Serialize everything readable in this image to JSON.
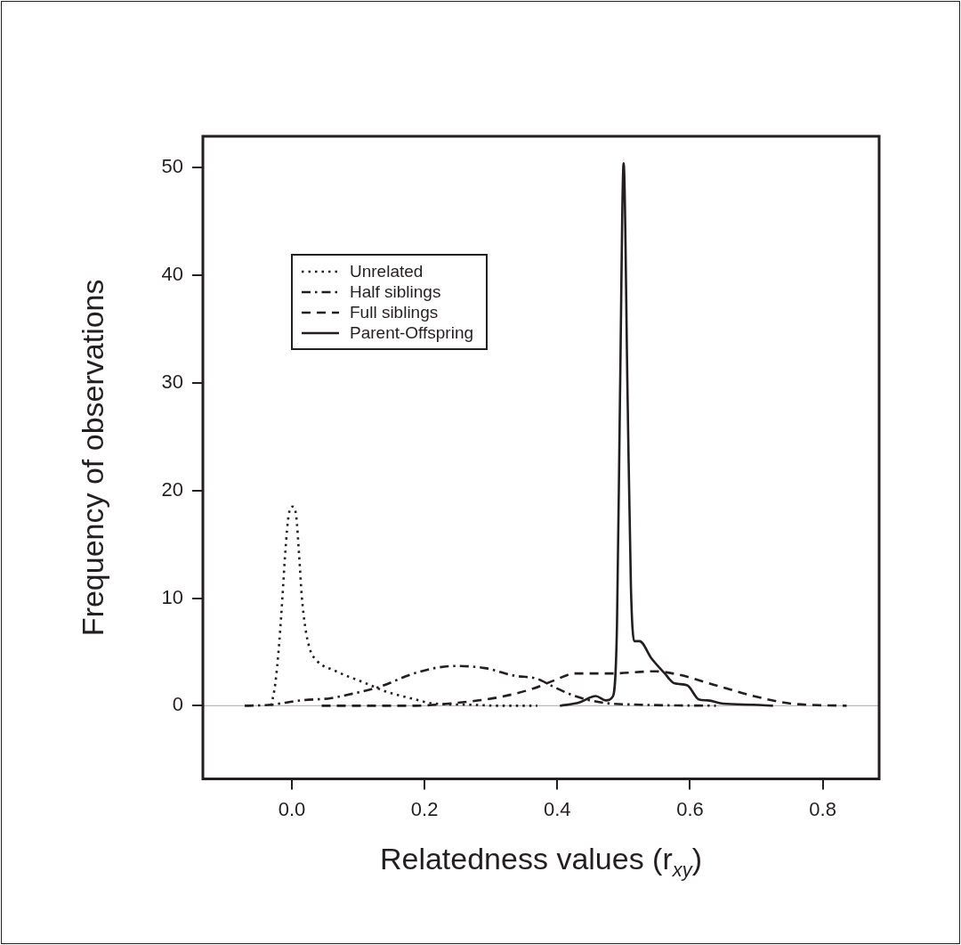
{
  "chart_data": {
    "type": "line",
    "xlabel": "Relatedness values (r$_{xy}$)",
    "ylabel": "Frequency of observations",
    "xlim": [
      -0.134,
      0.885
    ],
    "ylim": [
      -6.8,
      52.9
    ],
    "xticks": [
      {
        "value": 0,
        "label": "0.0"
      },
      0.2,
      0.4,
      0.6,
      0.8
    ],
    "yticks": [
      0,
      10,
      20,
      30,
      40,
      50
    ],
    "grid": false,
    "legend": "top left",
    "marker": "none",
    "ref_lines": [
      {
        "axis": "y",
        "value": 0,
        "label": null,
        "color": "#bbbbbb"
      }
    ],
    "series": [
      {
        "name": "Unrelated",
        "color": "#231f20",
        "line_style": "dotted",
        "x": [
          -0.031,
          -0.025,
          -0.019,
          -0.014,
          -0.0098,
          -0.0045,
          0.0013,
          0.0067,
          0.011,
          0.015,
          0.02,
          0.027,
          0.036,
          0.067,
          0.107,
          0.143,
          0.179,
          0.215,
          0.268,
          0.313,
          0.37
        ],
        "values": [
          0,
          2.0,
          5.8,
          10.2,
          14.3,
          17.8,
          18.5,
          17.6,
          14.0,
          10.2,
          7.4,
          5.3,
          4.3,
          3.2,
          2.2,
          1.3,
          0.7,
          0.2,
          0.1,
          0,
          0
        ]
      },
      {
        "name": "Half siblings",
        "color": "#231f20",
        "line_style": "dashdot",
        "x": [
          -0.071,
          -0.031,
          0.013,
          0.058,
          0.09,
          0.134,
          0.179,
          0.215,
          0.248,
          0.291,
          0.335,
          0.37,
          0.393,
          0.427,
          0.467,
          0.524,
          0.639
        ],
        "values": [
          0,
          0.1,
          0.5,
          0.7,
          1.1,
          1.8,
          2.9,
          3.5,
          3.7,
          3.5,
          2.8,
          2.5,
          1.8,
          0.9,
          0.3,
          0.1,
          0
        ]
      },
      {
        "name": "Full siblings",
        "color": "#231f20",
        "line_style": "dashed",
        "x": [
          0.045,
          0.179,
          0.268,
          0.313,
          0.364,
          0.393,
          0.427,
          0.479,
          0.547,
          0.582,
          0.639,
          0.696,
          0.753,
          0.836
        ],
        "values": [
          0,
          0,
          0.4,
          0.8,
          1.6,
          2.3,
          3.0,
          3.0,
          3.2,
          2.9,
          1.9,
          0.9,
          0.2,
          0
        ]
      },
      {
        "name": "Parent-Offspring",
        "color": "#231f20",
        "line_style": "solid",
        "x": [
          0.404,
          0.433,
          0.458,
          0.473,
          0.484,
          0.49,
          0.4945,
          0.5,
          0.506,
          0.511,
          0.516,
          0.524,
          0.542,
          0.562,
          0.576,
          0.596,
          0.613,
          0.627,
          0.65,
          0.696,
          0.725
        ],
        "values": [
          0,
          0.3,
          0.9,
          0.5,
          0.9,
          7.5,
          28.6,
          50.4,
          28.6,
          11.0,
          6.0,
          6.0,
          4.4,
          3.0,
          2.1,
          1.9,
          0.6,
          0.5,
          0.2,
          0.1,
          0
        ]
      }
    ]
  }
}
